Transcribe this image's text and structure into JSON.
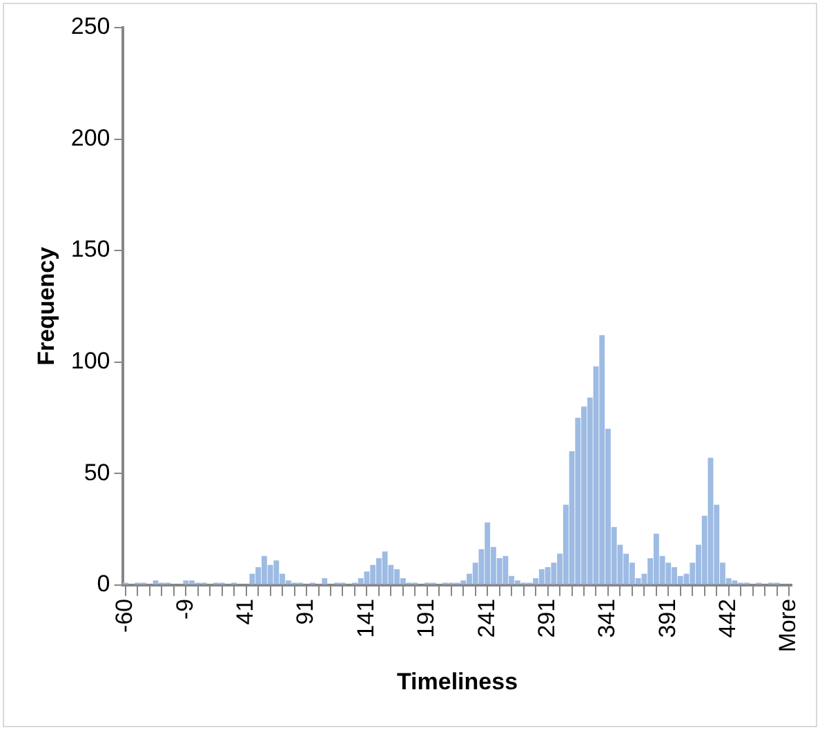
{
  "chart_data": {
    "type": "bar",
    "xlabel": "Timeliness",
    "ylabel": "Frequency",
    "categories": [
      "-60",
      null,
      null,
      null,
      null,
      null,
      null,
      null,
      null,
      null,
      "-9",
      null,
      null,
      null,
      null,
      null,
      null,
      null,
      null,
      null,
      "41",
      null,
      null,
      null,
      null,
      null,
      null,
      null,
      null,
      null,
      "91",
      null,
      null,
      null,
      null,
      null,
      null,
      null,
      null,
      null,
      "141",
      null,
      null,
      null,
      null,
      null,
      null,
      null,
      null,
      null,
      "191",
      null,
      null,
      null,
      null,
      null,
      null,
      null,
      null,
      null,
      "241",
      null,
      null,
      null,
      null,
      null,
      null,
      null,
      null,
      null,
      "291",
      null,
      null,
      null,
      null,
      null,
      null,
      null,
      null,
      null,
      "341",
      null,
      null,
      null,
      null,
      null,
      null,
      null,
      null,
      null,
      "391",
      null,
      null,
      null,
      null,
      null,
      null,
      null,
      null,
      null,
      "442",
      null,
      null,
      null,
      null,
      null,
      null,
      null,
      null,
      null,
      "More"
    ],
    "values": [
      1,
      0,
      1,
      1,
      0,
      2,
      1,
      1,
      0,
      0,
      2,
      2,
      1,
      1,
      0,
      1,
      1,
      0,
      1,
      0,
      0,
      5,
      8,
      13,
      9,
      11,
      5,
      2,
      1,
      1,
      0,
      1,
      0,
      3,
      0,
      1,
      1,
      0,
      1,
      3,
      6,
      9,
      12,
      15,
      9,
      7,
      3,
      1,
      1,
      0,
      1,
      1,
      0,
      1,
      1,
      1,
      2,
      5,
      10,
      16,
      28,
      17,
      12,
      13,
      4,
      2,
      1,
      1,
      3,
      7,
      8,
      10,
      14,
      36,
      60,
      75,
      80,
      84,
      98,
      112,
      70,
      26,
      18,
      14,
      10,
      3,
      5,
      12,
      23,
      13,
      10,
      8,
      4,
      5,
      10,
      18,
      31,
      57,
      36,
      10,
      3,
      2,
      1,
      1,
      0,
      1,
      0,
      1,
      1,
      0,
      0
    ],
    "color": "#9dbbe3",
    "ylim": [
      0,
      250
    ],
    "yticks": [
      0,
      50,
      100,
      150,
      200,
      250
    ],
    "grid": false,
    "legend": false
  }
}
